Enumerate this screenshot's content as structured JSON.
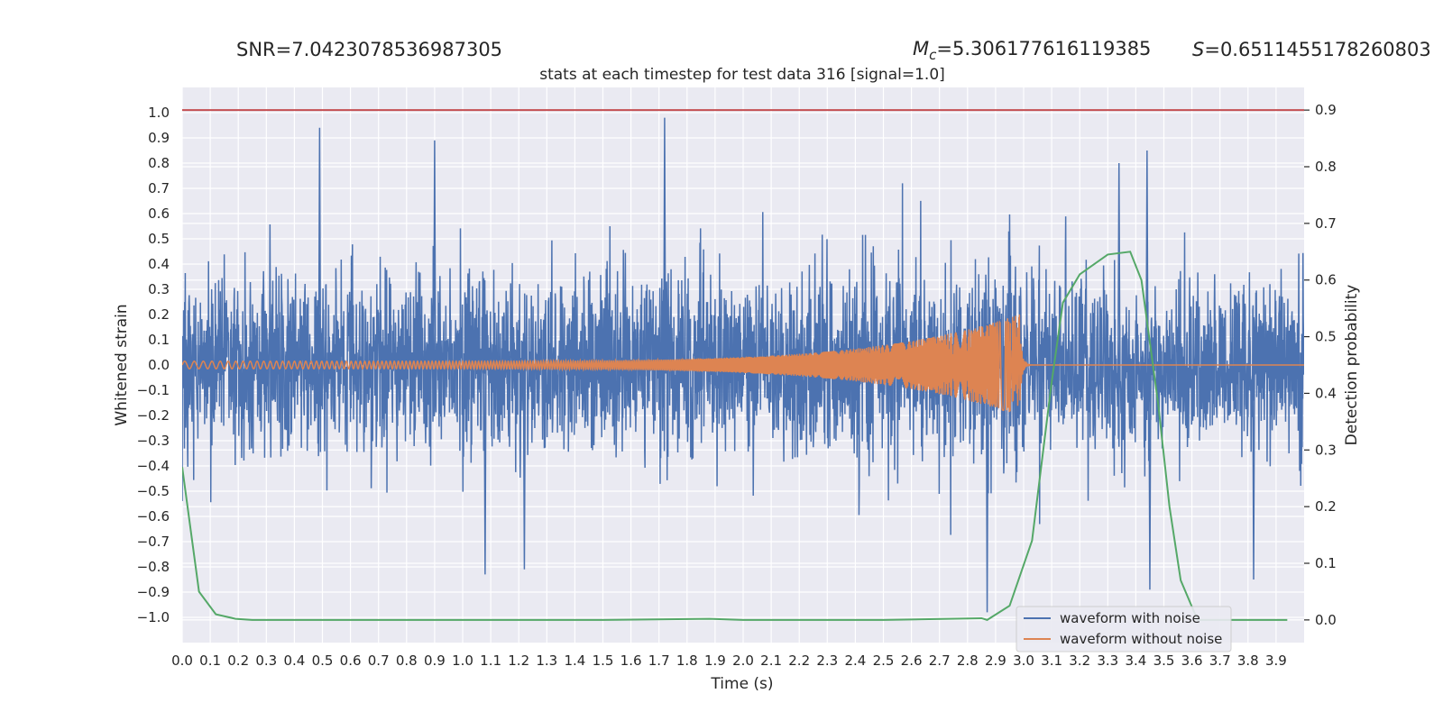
{
  "header": {
    "snr_text": "SNR=7.0423078536987305",
    "mc_symbol": "M",
    "mc_sub": "c",
    "mc_value": "=5.306177616119385",
    "s_symbol": "S",
    "s_value": "=0.6511455178260803"
  },
  "chart_data": {
    "type": "line",
    "title": "stats at each timestep for test data 316 [signal=1.0]",
    "xlabel": "Time (s)",
    "ylabel": "Whitened strain",
    "y2label": "Detection probability",
    "xlim": [
      0.0,
      4.0
    ],
    "ylim": [
      -1.1,
      1.1
    ],
    "y2lim": [
      -0.04,
      0.94
    ],
    "x_ticks": [
      "0.0",
      "0.1",
      "0.2",
      "0.3",
      "0.4",
      "0.5",
      "0.6",
      "0.7",
      "0.8",
      "0.9",
      "1.0",
      "1.1",
      "1.2",
      "1.3",
      "1.4",
      "1.5",
      "1.6",
      "1.7",
      "1.8",
      "1.9",
      "2.0",
      "2.1",
      "2.2",
      "2.3",
      "2.4",
      "2.5",
      "2.6",
      "2.7",
      "2.8",
      "2.9",
      "3.0",
      "3.1",
      "3.2",
      "3.3",
      "3.4",
      "3.5",
      "3.6",
      "3.7",
      "3.8",
      "3.9"
    ],
    "y_ticks": [
      "1.0",
      "0.9",
      "0.8",
      "0.7",
      "0.6",
      "0.5",
      "0.4",
      "0.3",
      "0.2",
      "0.1",
      "0.0",
      "−0.1",
      "−0.2",
      "−0.3",
      "−0.4",
      "−0.5",
      "−0.6",
      "−0.7",
      "−0.8",
      "−0.9",
      "−1.0"
    ],
    "y2_ticks": [
      "0.9",
      "0.8",
      "0.7",
      "0.6",
      "0.5",
      "0.4",
      "0.3",
      "0.2",
      "0.1",
      "0.0"
    ],
    "grid": true,
    "legend": "lower-right",
    "threshold": {
      "y2": 0.9,
      "color": "#c44e52"
    },
    "colors": {
      "noise": "#4c72b0",
      "clean": "#dd8452",
      "probability": "#55a868",
      "background": "#eaeaf2"
    },
    "series": [
      {
        "name": "waveform with noise",
        "noise_std": 0.17,
        "spikes": [
          [
            0.49,
            0.94
          ],
          [
            0.9,
            0.89
          ],
          [
            1.72,
            0.98
          ],
          [
            2.87,
            -0.98
          ],
          [
            3.34,
            0.8
          ],
          [
            3.44,
            0.85
          ],
          [
            3.45,
            -0.89
          ],
          [
            1.08,
            -0.83
          ],
          [
            1.22,
            -0.81
          ],
          [
            3.82,
            -0.85
          ]
        ]
      },
      {
        "name": "waveform without noise",
        "chirp": {
          "t_merge": 2.985,
          "amp_start": 0.015,
          "amp_peak": 0.2,
          "f_start": 28,
          "f_end": 220
        }
      },
      {
        "name": "detection probability",
        "x": [
          0.0,
          0.06,
          0.12,
          0.19,
          0.25,
          0.5,
          1.0,
          1.5,
          1.88,
          2.0,
          2.5,
          2.85,
          2.87,
          2.95,
          3.03,
          3.1,
          3.14,
          3.2,
          3.3,
          3.38,
          3.42,
          3.48,
          3.52,
          3.56,
          3.62,
          3.7,
          3.8,
          3.94
        ],
        "y": [
          0.27,
          0.05,
          0.01,
          0.002,
          0.0,
          0.0,
          0.0,
          0.0,
          0.002,
          0.0,
          0.0,
          0.003,
          0.0,
          0.025,
          0.14,
          0.42,
          0.56,
          0.61,
          0.645,
          0.65,
          0.6,
          0.38,
          0.2,
          0.07,
          0.0,
          0.0,
          0.0,
          0.0
        ]
      }
    ]
  }
}
